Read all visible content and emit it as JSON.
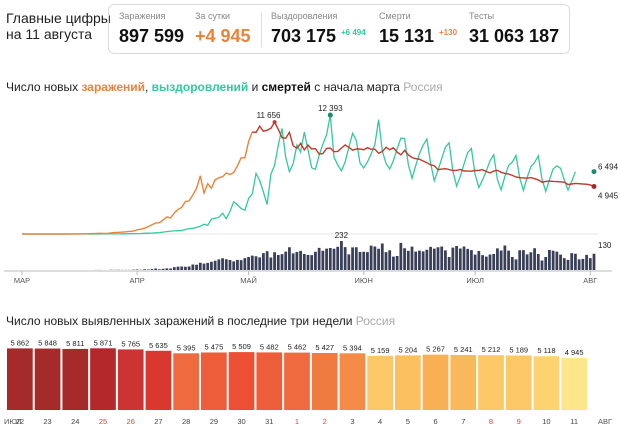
{
  "header": {
    "title_line1": "Главные цифры",
    "title_line2": "на 11 августа"
  },
  "stats": {
    "cases_label": "Заражения",
    "cases_value": "897 599",
    "perday_label": "За сутки",
    "perday_value": "+4 945",
    "recovered_label": "Выздоровления",
    "recovered_value": "703 175",
    "recovered_delta": "+6 494",
    "deaths_label": "Смерти",
    "deaths_value": "15 131",
    "deaths_delta": "+130",
    "tests_label": "Тесты",
    "tests_value": "31 063 187"
  },
  "colors": {
    "cases": "#e8833a",
    "cases_avg": "#c0392b",
    "recovered": "#35c8a0",
    "deaths": "#3a3f58",
    "deaths_avg": "#aab0c0"
  },
  "chart1": {
    "title_prefix": "Число новых ",
    "title_cases": "заражений",
    "title_sep": ", ",
    "title_recovered": "выздоровлений",
    "title_and": " и ",
    "title_deaths": "смертей",
    "title_suffix": " с начала марта",
    "region": "Россия"
  },
  "chart2": {
    "title": "Число новых выявленных заражений в последние три недели",
    "region": "Россия"
  },
  "chart_data": [
    {
      "type": "line",
      "x_labels": [
        "МАР",
        "АПР",
        "МАЙ",
        "ИЮН",
        "ИЮЛ",
        "АВГ"
      ],
      "series": [
        {
          "name": "заражений",
          "color": "#e8833a",
          "values": [
            0,
            0,
            0,
            0,
            0,
            0,
            0,
            0,
            0,
            0,
            0,
            0,
            3,
            7,
            6,
            14,
            17,
            20,
            33,
            38,
            57,
            76,
            53,
            58,
            113,
            163,
            182,
            196,
            228,
            270,
            302,
            440,
            500,
            601,
            771,
            954,
            1154,
            1175,
            1459,
            1786,
            1667,
            2186,
            2558,
            2774,
            3388,
            3448,
            4070,
            4785,
            6060,
            4268,
            5236,
            4774,
            5642,
            5849,
            5966,
            6361,
            6198,
            6411,
            7099,
            7933,
            7933,
            9623,
            10633,
            10581,
            11231,
            10699,
            10817,
            11012,
            11656,
            10899,
            10028,
            9974,
            10598,
            9200,
            8926,
            9434,
            8764,
            9263,
            8849,
            8894,
            8338,
            8371,
            8915,
            8952,
            8572,
            8599,
            8946,
            9268,
            9035,
            8726,
            8855,
            8863,
            8779,
            8985,
            8836,
            8831,
            8404,
            8595,
            9035,
            8779,
            8987,
            8536,
            8248,
            8706,
            8246,
            7972,
            7843,
            7790,
            7600,
            7425,
            7212,
            7113,
            6693,
            6760,
            6800,
            6718,
            6611,
            6632,
            6719,
            6562,
            6556,
            6537,
            6615,
            6635,
            6693,
            6509,
            6368,
            6562,
            6632,
            6422,
            6317,
            6248,
            6109,
            5940,
            5862,
            5848,
            5811,
            5871,
            5765,
            5635,
            5395,
            5475,
            5509,
            5482,
            5462,
            5427,
            5394,
            5159,
            5204,
            5267,
            5241,
            5212,
            5189,
            5118,
            4945
          ]
        },
        {
          "name": "выздоровлений",
          "color": "#35c8a0",
          "values": [
            0,
            0,
            0,
            0,
            0,
            0,
            0,
            0,
            0,
            0,
            0,
            0,
            0,
            0,
            0,
            0,
            0,
            0,
            2,
            3,
            3,
            5,
            6,
            8,
            10,
            12,
            14,
            20,
            24,
            30,
            38,
            46,
            55,
            70,
            80,
            90,
            120,
            150,
            200,
            250,
            300,
            320,
            340,
            360,
            470,
            560,
            590,
            680,
            812,
            1020,
            900,
            1550,
            1650,
            1746,
            2160,
            1590,
            2350,
            3350,
            3030,
            2660,
            2480,
            3710,
            4180,
            6300,
            5570,
            4380,
            3080,
            6240,
            7170,
            9270,
            11000,
            8000,
            6500,
            7300,
            9260,
            8530,
            10620,
            8760,
            6900,
            6730,
            8190,
            9360,
            10340,
            12390,
            8000,
            7200,
            6580,
            7500,
            9050,
            10500,
            9750,
            7400,
            6880,
            7510,
            8330,
            9320,
            11920,
            8660,
            7350,
            6770,
            7650,
            8860,
            9990,
            9950,
            7240,
            5810,
            7110,
            8360,
            9250,
            9900,
            7370,
            5550,
            6640,
            7850,
            9040,
            9500,
            6550,
            4990,
            6010,
            7280,
            8480,
            8910,
            6200,
            4840,
            5660,
            6570,
            7620,
            8260,
            5700,
            4590,
            6010,
            7150,
            7490,
            8190,
            5850,
            4540,
            5870,
            7020,
            7460,
            8140,
            5720,
            4450,
            5640,
            6770,
            7100,
            6840,
            5640,
            4570,
            5490,
            6494
          ]
        },
        {
          "name": "смертей",
          "color": "#3a3f58",
          "values": [
            0,
            0,
            0,
            0,
            0,
            0,
            0,
            0,
            0,
            0,
            0,
            0,
            0,
            0,
            0,
            0,
            0,
            0,
            0,
            0,
            1,
            1,
            0,
            0,
            2,
            1,
            2,
            1,
            1,
            1,
            3,
            4,
            2,
            6,
            4,
            7,
            12,
            6,
            10,
            13,
            12,
            23,
            27,
            28,
            26,
            28,
            44,
            42,
            58,
            51,
            57,
            66,
            74,
            85,
            94,
            86,
            80,
            69,
            81,
            79,
            95,
            104,
            115,
            110,
            101,
            135,
            150,
            100,
            142,
            120,
            127,
            147,
            182,
            133,
            144,
            153,
            128,
            120,
            119,
            146,
            177,
            154,
            171,
            176,
            170,
            186,
            232,
            183,
            125,
            181,
            182,
            144,
            146,
            143,
            195,
            188,
            170,
            212,
            143,
            158,
            107,
            112,
            217,
            174,
            153,
            187,
            147,
            155,
            149,
            162,
            185,
            171,
            182,
            188,
            157,
            104,
            179,
            192,
            172,
            188,
            169,
            159,
            123,
            152,
            119,
            107,
            124,
            128,
            173,
            156,
            196,
            155,
            104,
            85,
            158,
            159,
            125,
            142,
            174,
            128,
            76,
            104,
            160,
            154,
            147,
            123,
            95,
            81,
            135,
            130,
            85,
            89,
            121,
            95,
            130
          ]
        }
      ],
      "annotations": [
        "11 656",
        "12 393",
        "6 494",
        "4 945",
        "232",
        "130"
      ]
    },
    {
      "type": "bar",
      "categories": [
        "22",
        "23",
        "24",
        "25",
        "26",
        "27",
        "28",
        "29",
        "30",
        "31",
        "1",
        "2",
        "3",
        "4",
        "5",
        "6",
        "7",
        "8",
        "9",
        "10",
        "11"
      ],
      "values": [
        5862,
        5848,
        5811,
        5871,
        5765,
        5635,
        5395,
        5475,
        5509,
        5482,
        5462,
        5427,
        5394,
        5159,
        5204,
        5267,
        5241,
        5212,
        5189,
        5118,
        4945
      ],
      "value_labels": [
        "5 862",
        "5 848",
        "5 811",
        "5 871",
        "5 765",
        "5 635",
        "5 395",
        "5 475",
        "5 509",
        "5 482",
        "5 462",
        "5 427",
        "5 394",
        "5 159",
        "5 204",
        "5 267",
        "5 241",
        "5 212",
        "5 189",
        "5 118",
        "4 945"
      ],
      "weekend": [
        false,
        false,
        false,
        true,
        true,
        false,
        false,
        false,
        false,
        false,
        true,
        true,
        false,
        false,
        false,
        false,
        false,
        true,
        true,
        false,
        false
      ],
      "colors": [
        "#a52a2a",
        "#a52a2a",
        "#a52a2a",
        "#b3282b",
        "#cc3333",
        "#d9382f",
        "#ef6a3e",
        "#ee5d3a",
        "#ec4f34",
        "#ee5d3a",
        "#ef6a3e",
        "#f07b40",
        "#f48c47",
        "#fcc766",
        "#fcc060",
        "#f9b055",
        "#fab85c",
        "#fcc766",
        "#fcc766",
        "#fdd372",
        "#fde589"
      ],
      "month_left": "ИЮЛ",
      "month_right": "АВГ"
    }
  ]
}
